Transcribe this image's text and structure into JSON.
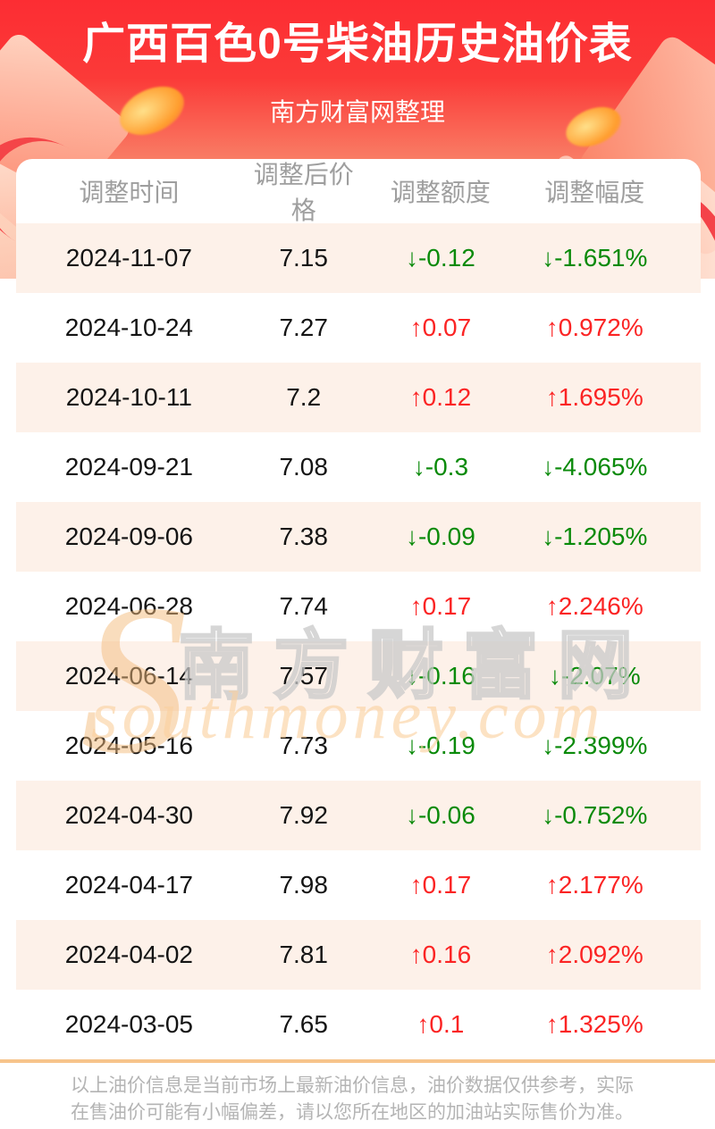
{
  "header": {
    "title": "广西百色0号柴油历史油价表",
    "subtitle": "南方财富网整理"
  },
  "table": {
    "columns": [
      "调整时间",
      "调整后价格",
      "调整额度",
      "调整幅度"
    ],
    "rows": [
      {
        "date": "2024-11-07",
        "price": "7.15",
        "change": "↓-0.12",
        "pct": "↓-1.651%",
        "dir": "down"
      },
      {
        "date": "2024-10-24",
        "price": "7.27",
        "change": "↑0.07",
        "pct": "↑0.972%",
        "dir": "up"
      },
      {
        "date": "2024-10-11",
        "price": "7.2",
        "change": "↑0.12",
        "pct": "↑1.695%",
        "dir": "up"
      },
      {
        "date": "2024-09-21",
        "price": "7.08",
        "change": "↓-0.3",
        "pct": "↓-4.065%",
        "dir": "down"
      },
      {
        "date": "2024-09-06",
        "price": "7.38",
        "change": "↓-0.09",
        "pct": "↓-1.205%",
        "dir": "down"
      },
      {
        "date": "2024-06-28",
        "price": "7.74",
        "change": "↑0.17",
        "pct": "↑2.246%",
        "dir": "up"
      },
      {
        "date": "2024-06-14",
        "price": "7.57",
        "change": "↓-0.16",
        "pct": "↓-2.07%",
        "dir": "down"
      },
      {
        "date": "2024-05-16",
        "price": "7.73",
        "change": "↓-0.19",
        "pct": "↓-2.399%",
        "dir": "down"
      },
      {
        "date": "2024-04-30",
        "price": "7.92",
        "change": "↓-0.06",
        "pct": "↓-0.752%",
        "dir": "down"
      },
      {
        "date": "2024-04-17",
        "price": "7.98",
        "change": "↑0.17",
        "pct": "↑2.177%",
        "dir": "up"
      },
      {
        "date": "2024-04-02",
        "price": "7.81",
        "change": "↑0.16",
        "pct": "↑2.092%",
        "dir": "up"
      },
      {
        "date": "2024-03-05",
        "price": "7.65",
        "change": "↑0.1",
        "pct": "↑1.325%",
        "dir": "up"
      }
    ]
  },
  "watermark": {
    "initial": "S",
    "site_name_cn": "南方财富网",
    "site_name_en": "southmoney.com"
  },
  "footer": {
    "disclaimer": "以上油价信息是当前市场上最新油价信息，油价数据仅供参考，实际在售油价可能有小幅偏差，请以您所在地区的加油站实际售价为准。"
  },
  "colors": {
    "banner_red": "#fc2d33",
    "banner_peach": "#fcb183",
    "row_highlight": "#fdf1e9",
    "increase_red": "#fb2424",
    "decrease_green": "#0a8a0a",
    "header_gray": "#9e9e9e",
    "separator_tan": "#f7c48b"
  },
  "chart_data": {
    "type": "table",
    "title": "广西百色0号柴油历史油价表",
    "subtitle": "南方财富网整理",
    "columns": [
      "调整时间",
      "调整后价格",
      "调整额度",
      "调整幅度"
    ],
    "rows": [
      [
        "2024-11-07",
        7.15,
        -0.12,
        "-1.651%"
      ],
      [
        "2024-10-24",
        7.27,
        0.07,
        "0.972%"
      ],
      [
        "2024-10-11",
        7.2,
        0.12,
        "1.695%"
      ],
      [
        "2024-09-21",
        7.08,
        -0.3,
        "-4.065%"
      ],
      [
        "2024-09-06",
        7.38,
        -0.09,
        "-1.205%"
      ],
      [
        "2024-06-28",
        7.74,
        0.17,
        "2.246%"
      ],
      [
        "2024-06-14",
        7.57,
        -0.16,
        "-2.07%"
      ],
      [
        "2024-05-16",
        7.73,
        -0.19,
        "-2.399%"
      ],
      [
        "2024-04-30",
        7.92,
        -0.06,
        "-0.752%"
      ],
      [
        "2024-04-17",
        7.98,
        0.17,
        "2.177%"
      ],
      [
        "2024-04-02",
        7.81,
        0.16,
        "2.092%"
      ],
      [
        "2024-03-05",
        7.65,
        0.1,
        "1.325%"
      ]
    ]
  }
}
